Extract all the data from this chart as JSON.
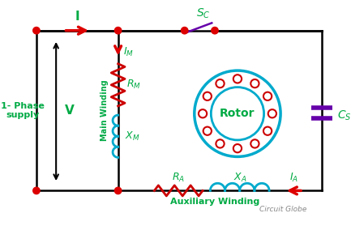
{
  "bg_color": "#ffffff",
  "black": "#000000",
  "red": "#dd0000",
  "green": "#00aa44",
  "cyan": "#00aacc",
  "purple": "#6600aa",
  "dark_red": "#cc0000",
  "gray": "#888888",
  "title": "Circuit Globe",
  "label_1phase": "1- Phase\nsupply",
  "label_V": "V",
  "label_I": "I",
  "label_IM": "$I_M$",
  "label_RM": "$R_M$",
  "label_XM": "$X_M$",
  "label_RA": "$R_A$",
  "label_XA": "$X_A$",
  "label_IA": "$I_A$",
  "label_SC": "$S_C$",
  "label_CS": "$C_S$",
  "label_main": "Main Winding",
  "label_aux": "Auxiliary Winding",
  "label_rotor": "Rotor"
}
